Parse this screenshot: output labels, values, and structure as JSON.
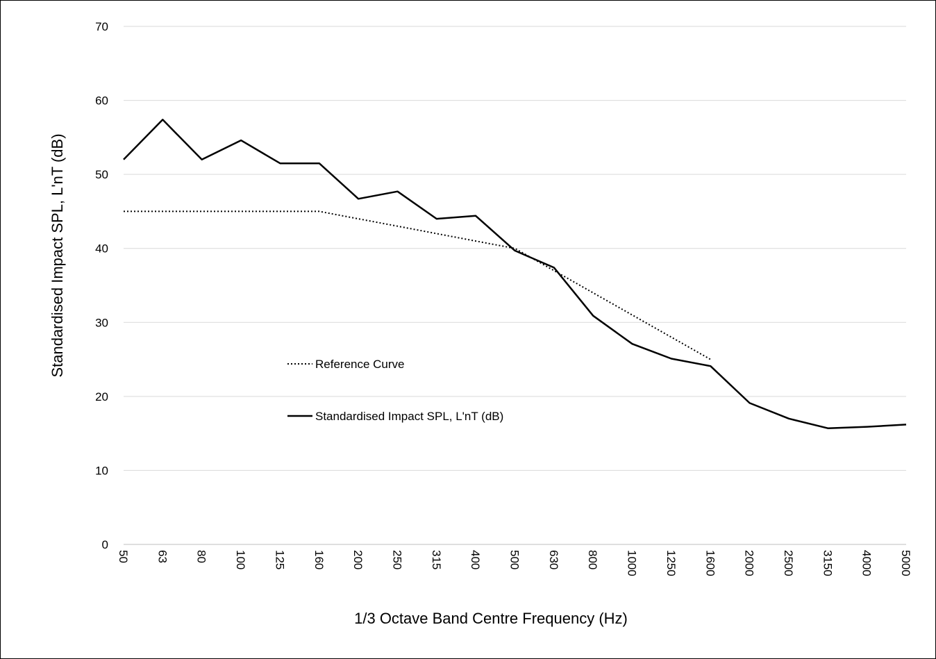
{
  "chart_data": {
    "type": "line",
    "title": "",
    "xlabel": "1/3 Octave Band Centre Frequency (Hz)",
    "ylabel": "Standardised Impact SPL,  L'nT (dB)",
    "ylim": [
      0,
      70
    ],
    "yticks": [
      "0",
      "10",
      "20",
      "30",
      "40",
      "50",
      "60",
      "70"
    ],
    "categories": [
      "50",
      "63",
      "80",
      "100",
      "125",
      "160",
      "200",
      "250",
      "315",
      "400",
      "500",
      "630",
      "800",
      "1000",
      "1250",
      "1600",
      "2000",
      "2500",
      "3150",
      "4000",
      "5000"
    ],
    "grid": "horizontal",
    "legend_position": "center-left",
    "series": [
      {
        "name": "Reference Curve",
        "style": "dotted",
        "color": "#000000",
        "values": [
          45,
          45,
          45,
          45,
          45,
          45,
          44,
          43,
          42,
          41,
          40,
          37,
          34,
          31,
          28,
          25,
          null,
          null,
          null,
          null,
          null
        ]
      },
      {
        "name": "Standardised Impact SPL, L'nT (dB)",
        "style": "solid",
        "color": "#000000",
        "values": [
          52,
          57.4,
          52,
          54.6,
          51.5,
          51.5,
          46.7,
          47.7,
          44,
          44.4,
          39.7,
          37.4,
          30.9,
          27.1,
          25.1,
          24.1,
          19.1,
          17,
          15.7,
          15.9,
          16.2
        ]
      }
    ]
  }
}
